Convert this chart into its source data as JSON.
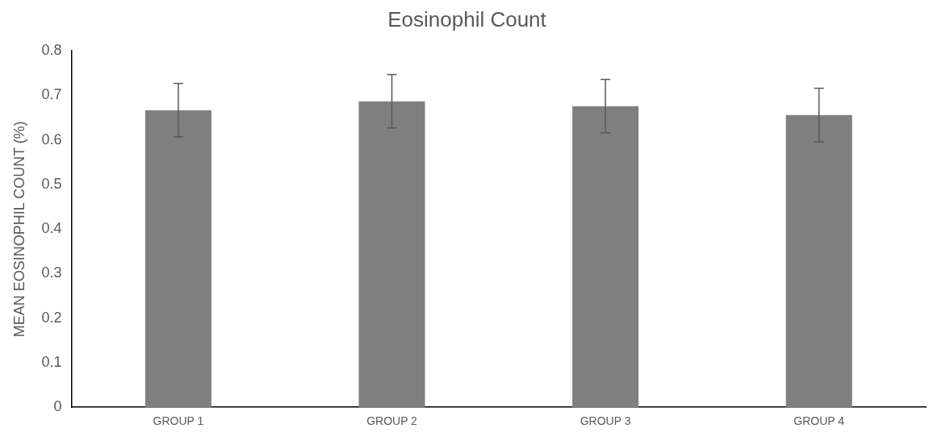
{
  "chart_data": {
    "type": "bar",
    "title": "Eosinophil Count",
    "ylabel": "MEAN EOSINOPHIL COUNT (%)",
    "categories": [
      "GROUP 1",
      "GROUP 2",
      "GROUP 3",
      "GROUP 4"
    ],
    "values": [
      0.667,
      0.687,
      0.676,
      0.656
    ],
    "errors": [
      0.06,
      0.06,
      0.06,
      0.06
    ],
    "color": "#7f7f7f",
    "ylim": [
      0,
      0.8
    ],
    "yticks": [
      0,
      0.1,
      0.2,
      0.3,
      0.4,
      0.5,
      0.6,
      0.7,
      0.8
    ],
    "grid": false,
    "legend": false
  }
}
